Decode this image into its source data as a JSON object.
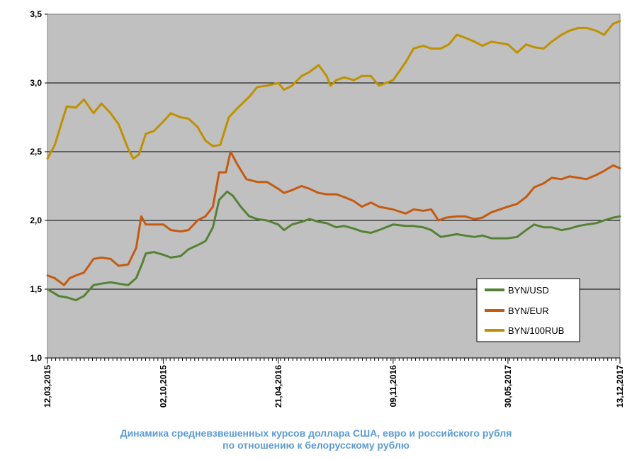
{
  "chart_data": {
    "type": "line",
    "title": "Динамика средневзвешенных курсов доллара США, евро и российского рубля по отношению к белорусскому рублю",
    "caption_lines": [
      "Динамика  средневзвешенных курсов доллара США, евро и российского рубля",
      "по отношению к белорусскому рублю"
    ],
    "ylim": [
      1.0,
      3.5
    ],
    "y_ticks": [
      "1,0",
      "1,5",
      "2,0",
      "2,5",
      "3,0",
      "3,5"
    ],
    "x_ticks": [
      "12,03,2015",
      "02,10,2015",
      "21,04,2016",
      "09,11,2016",
      "30,05,2017",
      "13,12,2017"
    ],
    "grid": true,
    "legend_position": "lower-right",
    "plot_background": "#c0c0c0",
    "series": [
      {
        "name": "BYN/USD",
        "color": "#548235",
        "points": [
          [
            "12,03,2015",
            1.5
          ],
          [
            "2015-04-01",
            1.45
          ],
          [
            "2015-04-15",
            1.44
          ],
          [
            "2015-05-01",
            1.42
          ],
          [
            "2015-05-15",
            1.45
          ],
          [
            "2015-06-01",
            1.53
          ],
          [
            "2015-06-15",
            1.54
          ],
          [
            "2015-07-01",
            1.55
          ],
          [
            "2015-07-15",
            1.54
          ],
          [
            "2015-08-01",
            1.53
          ],
          [
            "2015-08-15",
            1.58
          ],
          [
            "2015-08-25",
            1.68
          ],
          [
            "2015-09-01",
            1.76
          ],
          [
            "2015-09-15",
            1.77
          ],
          [
            "02,10,2015",
            1.75
          ],
          [
            "2015-10-15",
            1.73
          ],
          [
            "2015-11-01",
            1.74
          ],
          [
            "2015-11-15",
            1.79
          ],
          [
            "2015-12-01",
            1.82
          ],
          [
            "2015-12-15",
            1.85
          ],
          [
            "2015-12-28",
            1.95
          ],
          [
            "2016-01-08",
            2.15
          ],
          [
            "2016-01-22",
            2.21
          ],
          [
            "2016-02-01",
            2.18
          ],
          [
            "2016-02-15",
            2.1
          ],
          [
            "2016-03-01",
            2.03
          ],
          [
            "2016-03-15",
            2.01
          ],
          [
            "2016-04-01",
            2.0
          ],
          [
            "21,04,2016",
            1.97
          ],
          [
            "2016-05-01",
            1.93
          ],
          [
            "2016-05-15",
            1.97
          ],
          [
            "2016-06-01",
            1.99
          ],
          [
            "2016-06-15",
            2.01
          ],
          [
            "2016-07-01",
            1.99
          ],
          [
            "2016-07-15",
            1.98
          ],
          [
            "2016-08-01",
            1.95
          ],
          [
            "2016-08-15",
            1.96
          ],
          [
            "2016-09-01",
            1.94
          ],
          [
            "2016-09-15",
            1.92
          ],
          [
            "2016-10-01",
            1.91
          ],
          [
            "2016-10-15",
            1.93
          ],
          [
            "09,11,2016",
            1.97
          ],
          [
            "2016-12-01",
            1.96
          ],
          [
            "2016-12-15",
            1.96
          ],
          [
            "2017-01-01",
            1.95
          ],
          [
            "2017-01-15",
            1.93
          ],
          [
            "2017-02-01",
            1.88
          ],
          [
            "2017-02-15",
            1.89
          ],
          [
            "2017-03-01",
            1.9
          ],
          [
            "2017-03-15",
            1.89
          ],
          [
            "2017-04-01",
            1.88
          ],
          [
            "2017-04-15",
            1.89
          ],
          [
            "2017-05-01",
            1.87
          ],
          [
            "30,05,2017",
            1.87
          ],
          [
            "2017-06-15",
            1.88
          ],
          [
            "2017-07-01",
            1.93
          ],
          [
            "2017-07-15",
            1.97
          ],
          [
            "2017-08-01",
            1.95
          ],
          [
            "2017-08-15",
            1.95
          ],
          [
            "2017-09-01",
            1.93
          ],
          [
            "2017-09-15",
            1.94
          ],
          [
            "2017-10-01",
            1.96
          ],
          [
            "2017-10-15",
            1.97
          ],
          [
            "2017-11-01",
            1.98
          ],
          [
            "2017-11-15",
            2.0
          ],
          [
            "2017-12-01",
            2.02
          ],
          [
            "13,12,2017",
            2.03
          ]
        ]
      },
      {
        "name": "BYN/EUR",
        "color": "#c55a11",
        "points": [
          [
            "12,03,2015",
            1.6
          ],
          [
            "2015-03-25",
            1.58
          ],
          [
            "2015-04-10",
            1.53
          ],
          [
            "2015-04-20",
            1.58
          ],
          [
            "2015-05-01",
            1.6
          ],
          [
            "2015-05-15",
            1.62
          ],
          [
            "2015-06-01",
            1.72
          ],
          [
            "2015-06-15",
            1.73
          ],
          [
            "2015-07-01",
            1.72
          ],
          [
            "2015-07-15",
            1.67
          ],
          [
            "2015-08-01",
            1.68
          ],
          [
            "2015-08-15",
            1.8
          ],
          [
            "2015-08-24",
            2.03
          ],
          [
            "2015-09-01",
            1.97
          ],
          [
            "2015-09-15",
            1.97
          ],
          [
            "02,10,2015",
            1.97
          ],
          [
            "2015-10-15",
            1.93
          ],
          [
            "2015-11-01",
            1.92
          ],
          [
            "2015-11-15",
            1.93
          ],
          [
            "2015-12-01",
            2.0
          ],
          [
            "2015-12-15",
            2.03
          ],
          [
            "2015-12-28",
            2.1
          ],
          [
            "2016-01-08",
            2.35
          ],
          [
            "2016-01-20",
            2.35
          ],
          [
            "2016-01-28",
            2.5
          ],
          [
            "2016-02-10",
            2.4
          ],
          [
            "2016-02-25",
            2.3
          ],
          [
            "2016-03-15",
            2.28
          ],
          [
            "2016-04-01",
            2.28
          ],
          [
            "21,04,2016",
            2.23
          ],
          [
            "2016-05-01",
            2.2
          ],
          [
            "2016-05-15",
            2.22
          ],
          [
            "2016-06-01",
            2.25
          ],
          [
            "2016-06-15",
            2.23
          ],
          [
            "2016-07-01",
            2.2
          ],
          [
            "2016-07-15",
            2.19
          ],
          [
            "2016-08-01",
            2.19
          ],
          [
            "2016-08-15",
            2.17
          ],
          [
            "2016-09-01",
            2.14
          ],
          [
            "2016-09-15",
            2.1
          ],
          [
            "2016-10-01",
            2.13
          ],
          [
            "2016-10-15",
            2.1
          ],
          [
            "09,11,2016",
            2.08
          ],
          [
            "2016-12-01",
            2.05
          ],
          [
            "2016-12-15",
            2.08
          ],
          [
            "2017-01-01",
            2.07
          ],
          [
            "2017-01-15",
            2.08
          ],
          [
            "2017-01-28",
            2.0
          ],
          [
            "2017-02-10",
            2.02
          ],
          [
            "2017-03-01",
            2.03
          ],
          [
            "2017-03-15",
            2.03
          ],
          [
            "2017-04-01",
            2.01
          ],
          [
            "2017-04-15",
            2.02
          ],
          [
            "2017-05-01",
            2.06
          ],
          [
            "30,05,2017",
            2.1
          ],
          [
            "2017-06-15",
            2.12
          ],
          [
            "2017-07-01",
            2.17
          ],
          [
            "2017-07-15",
            2.24
          ],
          [
            "2017-08-01",
            2.27
          ],
          [
            "2017-08-15",
            2.31
          ],
          [
            "2017-09-01",
            2.3
          ],
          [
            "2017-09-15",
            2.32
          ],
          [
            "2017-10-01",
            2.31
          ],
          [
            "2017-10-15",
            2.3
          ],
          [
            "2017-11-01",
            2.33
          ],
          [
            "2017-11-15",
            2.36
          ],
          [
            "2017-12-01",
            2.4
          ],
          [
            "13,12,2017",
            2.38
          ]
        ]
      },
      {
        "name": "BYN/100RUB",
        "color": "#bf9000",
        "points": [
          [
            "12,03,2015",
            2.45
          ],
          [
            "2015-03-25",
            2.55
          ],
          [
            "2015-04-05",
            2.7
          ],
          [
            "2015-04-15",
            2.83
          ],
          [
            "2015-05-01",
            2.82
          ],
          [
            "2015-05-15",
            2.88
          ],
          [
            "2015-06-01",
            2.78
          ],
          [
            "2015-06-15",
            2.85
          ],
          [
            "2015-07-01",
            2.78
          ],
          [
            "2015-07-15",
            2.7
          ],
          [
            "2015-08-01",
            2.52
          ],
          [
            "2015-08-10",
            2.45
          ],
          [
            "2015-08-20",
            2.48
          ],
          [
            "2015-09-01",
            2.63
          ],
          [
            "2015-09-15",
            2.65
          ],
          [
            "02,10,2015",
            2.72
          ],
          [
            "2015-10-15",
            2.78
          ],
          [
            "2015-11-01",
            2.75
          ],
          [
            "2015-11-15",
            2.74
          ],
          [
            "2015-12-01",
            2.68
          ],
          [
            "2015-12-15",
            2.58
          ],
          [
            "2015-12-28",
            2.54
          ],
          [
            "2016-01-10",
            2.55
          ],
          [
            "2016-01-25",
            2.75
          ],
          [
            "2016-02-10",
            2.82
          ],
          [
            "2016-03-01",
            2.9
          ],
          [
            "2016-03-15",
            2.97
          ],
          [
            "2016-04-01",
            2.98
          ],
          [
            "21,04,2016",
            3.0
          ],
          [
            "2016-05-01",
            2.95
          ],
          [
            "2016-05-15",
            2.98
          ],
          [
            "2016-06-01",
            3.05
          ],
          [
            "2016-06-15",
            3.08
          ],
          [
            "2016-07-01",
            3.13
          ],
          [
            "2016-07-15",
            3.05
          ],
          [
            "2016-07-22",
            2.98
          ],
          [
            "2016-08-01",
            3.02
          ],
          [
            "2016-08-15",
            3.04
          ],
          [
            "2016-09-01",
            3.02
          ],
          [
            "2016-09-15",
            3.05
          ],
          [
            "2016-10-01",
            3.05
          ],
          [
            "2016-10-15",
            2.98
          ],
          [
            "09,11,2016",
            3.02
          ],
          [
            "2016-12-01",
            3.15
          ],
          [
            "2016-12-15",
            3.25
          ],
          [
            "2017-01-01",
            3.27
          ],
          [
            "2017-01-15",
            3.25
          ],
          [
            "2017-02-01",
            3.25
          ],
          [
            "2017-02-15",
            3.28
          ],
          [
            "2017-03-01",
            3.35
          ],
          [
            "2017-03-15",
            3.33
          ],
          [
            "2017-04-01",
            3.3
          ],
          [
            "2017-04-15",
            3.27
          ],
          [
            "2017-05-01",
            3.3
          ],
          [
            "30,05,2017",
            3.28
          ],
          [
            "2017-06-15",
            3.22
          ],
          [
            "2017-07-01",
            3.28
          ],
          [
            "2017-07-15",
            3.26
          ],
          [
            "2017-08-01",
            3.25
          ],
          [
            "2017-08-15",
            3.3
          ],
          [
            "2017-09-01",
            3.35
          ],
          [
            "2017-09-15",
            3.38
          ],
          [
            "2017-10-01",
            3.4
          ],
          [
            "2017-10-15",
            3.4
          ],
          [
            "2017-11-01",
            3.38
          ],
          [
            "2017-11-15",
            3.35
          ],
          [
            "2017-12-01",
            3.43
          ],
          [
            "13,12,2017",
            3.45
          ]
        ]
      }
    ]
  }
}
